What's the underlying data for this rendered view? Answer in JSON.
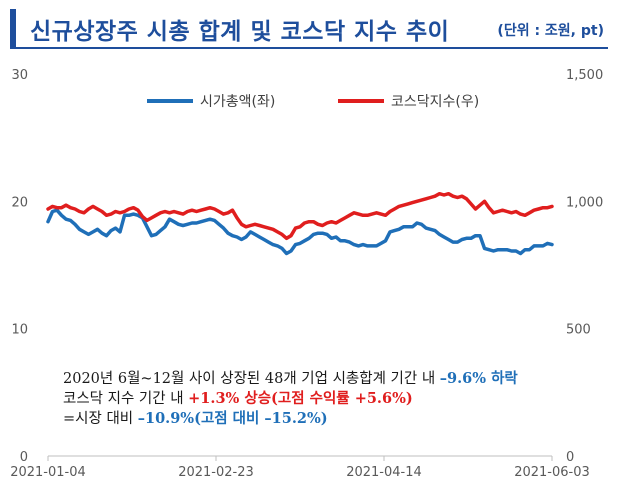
{
  "header": {
    "title": "신규상장주 시총 합계 및 코스닥 지수 추이",
    "unit": "(단위 : 조원, pt)"
  },
  "colors": {
    "series_blue": "#1f6fb8",
    "series_red": "#e01e1e",
    "title": "#1e4e9c"
  },
  "chart_data": {
    "type": "line",
    "title": "신규상장주 시총 합계 및 코스닥 지수 추이",
    "x_ticks": [
      "2021-01-04",
      "2021-02-23",
      "2021-04-14",
      "2021-06-03"
    ],
    "y_left": {
      "range": [
        0,
        30
      ],
      "ticks": [
        "0",
        "10",
        "20",
        "30"
      ]
    },
    "y_right": {
      "range": [
        0,
        1500
      ],
      "ticks": [
        "0",
        "500",
        "1,000",
        "1,500"
      ]
    },
    "legend_position": "top",
    "series": [
      {
        "name": "시가총액(좌)",
        "axis": "left",
        "values": [
          18.4,
          19.2,
          19.3,
          18.9,
          18.6,
          18.5,
          18.2,
          17.8,
          17.6,
          17.4,
          17.6,
          17.8,
          17.5,
          17.3,
          17.7,
          17.9,
          17.6,
          18.9,
          18.9,
          19.0,
          18.9,
          18.7,
          18.0,
          17.3,
          17.4,
          17.7,
          18.0,
          18.6,
          18.4,
          18.2,
          18.1,
          18.2,
          18.3,
          18.3,
          18.4,
          18.5,
          18.6,
          18.5,
          18.2,
          17.9,
          17.5,
          17.3,
          17.2,
          17.0,
          17.2,
          17.6,
          17.4,
          17.2,
          17.0,
          16.8,
          16.6,
          16.5,
          16.3,
          15.9,
          16.1,
          16.6,
          16.7,
          16.9,
          17.1,
          17.4,
          17.5,
          17.5,
          17.4,
          17.1,
          17.2,
          16.9,
          16.9,
          16.8,
          16.6,
          16.5,
          16.6,
          16.5,
          16.5,
          16.5,
          16.7,
          16.9,
          17.6,
          17.7,
          17.8,
          18.0,
          18.0,
          18.0,
          18.3,
          18.2,
          17.9,
          17.8,
          17.7,
          17.4,
          17.2,
          17.0,
          16.8,
          16.8,
          17.0,
          17.1,
          17.1,
          17.3,
          17.3,
          16.3,
          16.2,
          16.1,
          16.2,
          16.2,
          16.2,
          16.1,
          16.1,
          15.9,
          16.2,
          16.2,
          16.5,
          16.5,
          16.5,
          16.7,
          16.6
        ]
      },
      {
        "name": "코스닥지수(우)",
        "axis": "right",
        "values": [
          970,
          980,
          975,
          975,
          985,
          975,
          970,
          960,
          955,
          970,
          980,
          970,
          960,
          945,
          950,
          960,
          955,
          960,
          970,
          975,
          965,
          940,
          925,
          935,
          945,
          955,
          960,
          955,
          960,
          955,
          950,
          960,
          965,
          960,
          965,
          970,
          975,
          970,
          960,
          950,
          955,
          965,
          935,
          910,
          900,
          905,
          910,
          905,
          900,
          895,
          890,
          880,
          870,
          855,
          865,
          895,
          900,
          915,
          920,
          920,
          910,
          905,
          915,
          920,
          915,
          925,
          935,
          945,
          955,
          950,
          945,
          945,
          950,
          955,
          950,
          945,
          960,
          970,
          980,
          985,
          990,
          995,
          1000,
          1005,
          1010,
          1015,
          1020,
          1030,
          1025,
          1030,
          1020,
          1015,
          1020,
          1010,
          990,
          970,
          985,
          1000,
          975,
          955,
          960,
          965,
          960,
          955,
          960,
          950,
          945,
          955,
          965,
          970,
          975,
          975,
          980
        ]
      }
    ]
  },
  "note": {
    "line1_text": "2020년 6월~12월 사이 상장된 48개 기업 시총합계 기간 내 ",
    "line1_hl": "–9.6% 하락",
    "line2_text": "코스닥 지수 기간 내 ",
    "line2_hl": "+1.3% 상승(고점 수익률 +5.6%)",
    "line3_text": "=시장 대비 ",
    "line3_hl": "–10.9%(고점 대비 –15.2%)"
  }
}
